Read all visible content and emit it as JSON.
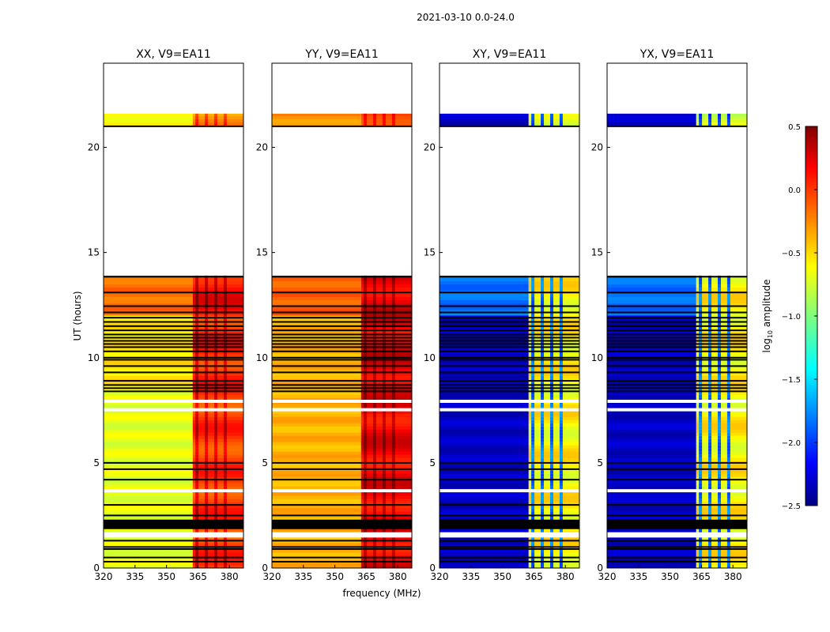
{
  "chart_data": {
    "type": "heatmap",
    "suptitle": "2021-03-10 0.0-24.0",
    "xlabel": "frequency (MHz)",
    "ylabel": "UT (hours)",
    "xlim": [
      320,
      386.7
    ],
    "ylim": [
      0,
      24
    ],
    "xticks": [
      320,
      335,
      350,
      365,
      380
    ],
    "yticks": [
      0,
      5,
      10,
      15,
      20
    ],
    "colorbar": {
      "label": "log10 amplitude",
      "label_main": "log",
      "label_sub": "10",
      "label_rest": " amplitude",
      "vmin": -2.5,
      "vmax": 0.5,
      "ticks": [
        0.5,
        0.0,
        -0.5,
        -1.0,
        -1.5,
        -2.0,
        -2.5
      ],
      "tick_labels": [
        "0.5",
        "0.0",
        "−0.5",
        "−1.0",
        "−1.5",
        "−2.0",
        "−2.5"
      ],
      "colormap": "jet"
    },
    "time_ranges": [
      [
        21.05,
        21.6
      ],
      [
        12.0,
        13.9
      ],
      [
        8.4,
        12.0
      ],
      [
        0.0,
        8.4
      ]
    ],
    "band_split_mhz": 362.5,
    "stripe_freqs_mhz": [
      364.5,
      369.0,
      373.5,
      378.0
    ],
    "flag_lines_hours": [
      21.0,
      13.85,
      13.1,
      12.45,
      12.15,
      11.9,
      11.7,
      11.5,
      11.3,
      11.1,
      10.95,
      10.8,
      10.65,
      10.5,
      10.3,
      10.0,
      9.9,
      9.6,
      9.3,
      8.9,
      8.7,
      8.55,
      8.4,
      5.0,
      4.7,
      4.2,
      3.0,
      2.5,
      1.3,
      1.0,
      0.9,
      0.5,
      0.3
    ],
    "flag_bands_hours": [
      [
        1.85,
        2.3
      ]
    ],
    "gap_bands_hours": [
      [
        7.85,
        8.0
      ],
      [
        7.45,
        7.6
      ],
      [
        3.6,
        3.75
      ],
      [
        1.45,
        1.7
      ]
    ],
    "panels": [
      {
        "title": "XX, V9=EA11",
        "levels_low_band": [
          -0.6,
          -0.2,
          -0.55,
          -0.7
        ],
        "levels_high_band": [
          -0.3,
          0.1,
          0.0,
          -0.05
        ],
        "stripe_offset": 0.3
      },
      {
        "title": "YY, V9=EA11",
        "levels_low_band": [
          -0.3,
          -0.15,
          -0.4,
          -0.4
        ],
        "levels_high_band": [
          0.0,
          0.2,
          0.2,
          0.15
        ],
        "stripe_offset": 0.25
      },
      {
        "title": "XY, V9=EA11",
        "levels_low_band": [
          -2.3,
          -1.8,
          -2.3,
          -2.3
        ],
        "levels_high_band": [
          -0.8,
          -0.6,
          -0.6,
          -0.6
        ],
        "stripe_offset": -1.2
      },
      {
        "title": "YX, V9=EA11",
        "levels_low_band": [
          -2.3,
          -1.8,
          -2.3,
          -2.3
        ],
        "levels_high_band": [
          -0.8,
          -0.6,
          -0.6,
          -0.6
        ],
        "stripe_offset": -1.2
      }
    ]
  }
}
